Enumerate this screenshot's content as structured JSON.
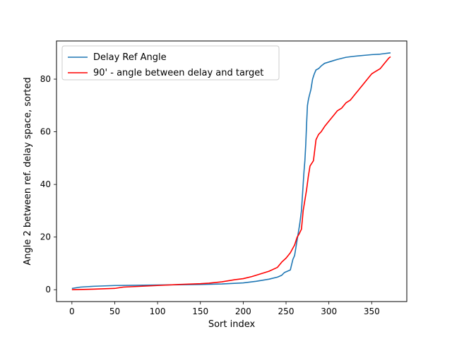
{
  "chart_data": {
    "type": "line",
    "title": "",
    "xlabel": "Sort index",
    "ylabel": "Angle 2 between ref. delay space, sorted",
    "xlim": [
      -18,
      391
    ],
    "ylim": [
      -4.5,
      94.5
    ],
    "xticks": [
      0,
      50,
      100,
      150,
      200,
      250,
      300,
      350
    ],
    "yticks": [
      0,
      20,
      40,
      60,
      80
    ],
    "grid": false,
    "legend": "top-left",
    "series": [
      {
        "name": "Delay Ref Angle",
        "color": "#1f77b4",
        "x": [
          0,
          10,
          25,
          50,
          75,
          100,
          125,
          150,
          175,
          200,
          215,
          230,
          240,
          245,
          248,
          250,
          255,
          258,
          260,
          262,
          264,
          266,
          268,
          270,
          271,
          272,
          273,
          274,
          275,
          276,
          277,
          279,
          281,
          283,
          285,
          288,
          291,
          295,
          300,
          305,
          310,
          320,
          330,
          340,
          350,
          360,
          372
        ],
        "y": [
          0.5,
          1.0,
          1.3,
          1.6,
          1.7,
          1.8,
          1.9,
          2.0,
          2.2,
          2.6,
          3.2,
          4.0,
          4.8,
          5.5,
          6.5,
          6.8,
          7.5,
          11.5,
          13,
          17,
          21,
          25,
          30,
          40,
          45,
          49,
          55,
          63,
          70,
          72,
          73.5,
          76,
          80,
          82,
          83.5,
          84,
          85,
          86,
          86.5,
          87,
          87.5,
          88.3,
          88.7,
          89,
          89.3,
          89.5,
          90
        ]
      },
      {
        "name": "90' - angle between delay and target",
        "color": "#ff0000",
        "x": [
          0,
          25,
          50,
          60,
          80,
          100,
          125,
          150,
          160,
          175,
          190,
          200,
          210,
          220,
          230,
          240,
          245,
          250,
          255,
          260,
          263,
          265,
          268,
          270,
          272,
          274,
          276,
          278,
          280,
          282,
          285,
          288,
          291,
          295,
          300,
          305,
          310,
          315,
          320,
          325,
          330,
          340,
          345,
          350,
          355,
          360,
          365,
          370,
          372
        ],
        "y": [
          0,
          0.2,
          0.5,
          1.0,
          1.3,
          1.6,
          2.0,
          2.3,
          2.5,
          3.0,
          3.8,
          4.2,
          5.0,
          6.0,
          7.0,
          8.5,
          10.5,
          12,
          14,
          17,
          20,
          21,
          23,
          30,
          34,
          38,
          43,
          47,
          48,
          49,
          57,
          59,
          60,
          62,
          64,
          66,
          68,
          69,
          71,
          72,
          74,
          78,
          80,
          82,
          83,
          84,
          86,
          88,
          88.5
        ]
      }
    ]
  }
}
